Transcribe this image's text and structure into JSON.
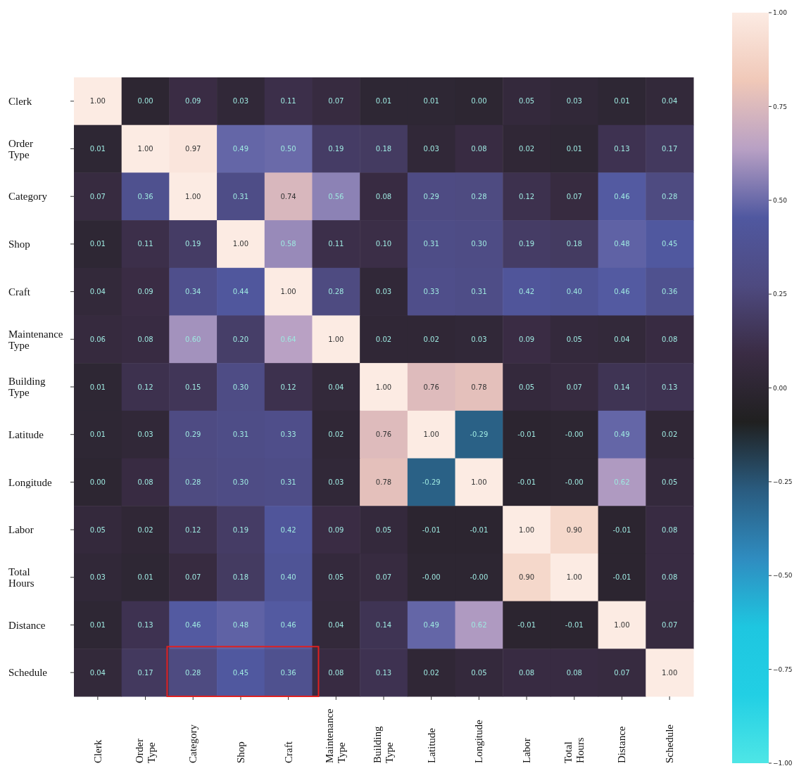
{
  "chart_data": {
    "type": "heatmap",
    "categories": [
      "Clerk",
      "Order Type",
      "Category",
      "Shop",
      "Craft",
      "Maintenance Type",
      "Building Type",
      "Latitude",
      "Longitude",
      "Labor",
      "Total Hours",
      "Distance",
      "Schedule"
    ],
    "y_categories": [
      "Clerk",
      "Order Type",
      "Category",
      "Shop",
      "Craft",
      "Maintenance Type",
      "Building Type",
      "Latitude",
      "Longitude",
      "Labor",
      "Total Hours",
      "Distance",
      "Schedule"
    ],
    "cells": [
      [
        1.0,
        0.0,
        0.09,
        0.03,
        0.11,
        0.07,
        0.01,
        0.01,
        0.0,
        0.05,
        0.03,
        0.01,
        0.04
      ],
      [
        0.01,
        1.0,
        0.97,
        0.49,
        0.5,
        0.19,
        0.18,
        0.03,
        0.08,
        0.02,
        0.01,
        0.13,
        0.17
      ],
      [
        0.07,
        0.36,
        1.0,
        0.31,
        0.74,
        0.56,
        0.08,
        0.29,
        0.28,
        0.12,
        0.07,
        0.46,
        0.28
      ],
      [
        0.01,
        0.11,
        0.19,
        1.0,
        0.58,
        0.11,
        0.1,
        0.31,
        0.3,
        0.19,
        0.18,
        0.48,
        0.45
      ],
      [
        0.04,
        0.09,
        0.34,
        0.44,
        1.0,
        0.28,
        0.03,
        0.33,
        0.31,
        0.42,
        0.4,
        0.46,
        0.36
      ],
      [
        0.06,
        0.08,
        0.6,
        0.2,
        0.64,
        1.0,
        0.02,
        0.02,
        0.03,
        0.09,
        0.05,
        0.04,
        0.08
      ],
      [
        0.01,
        0.12,
        0.15,
        0.3,
        0.12,
        0.04,
        1.0,
        0.76,
        0.78,
        0.05,
        0.07,
        0.14,
        0.13
      ],
      [
        0.01,
        0.03,
        0.29,
        0.31,
        0.33,
        0.02,
        0.76,
        1.0,
        -0.29,
        -0.01,
        0.0,
        0.49,
        0.02
      ],
      [
        0.0,
        0.08,
        0.28,
        0.3,
        0.31,
        0.03,
        0.78,
        -0.29,
        1.0,
        -0.01,
        0.0,
        0.62,
        0.05
      ],
      [
        0.05,
        0.02,
        0.12,
        0.19,
        0.42,
        0.09,
        0.05,
        -0.01,
        -0.01,
        1.0,
        0.9,
        -0.01,
        0.08
      ],
      [
        0.03,
        0.01,
        0.07,
        0.18,
        0.4,
        0.05,
        0.07,
        0.0,
        0.0,
        0.9,
        1.0,
        -0.01,
        0.08
      ],
      [
        0.01,
        0.13,
        0.46,
        0.48,
        0.46,
        0.04,
        0.14,
        0.49,
        0.62,
        -0.01,
        -0.01,
        1.0,
        0.07
      ],
      [
        0.04,
        0.17,
        0.28,
        0.45,
        0.36,
        0.08,
        0.13,
        0.02,
        0.05,
        0.08,
        0.08,
        0.07,
        1.0
      ]
    ],
    "cell_labels": [
      [
        "1.00",
        "0.00",
        "0.09",
        "0.03",
        "0.11",
        "0.07",
        "0.01",
        "0.01",
        "0.00",
        "0.05",
        "0.03",
        "0.01",
        "0.04"
      ],
      [
        "0.01",
        "1.00",
        "0.97",
        "0.49",
        "0.50",
        "0.19",
        "0.18",
        "0.03",
        "0.08",
        "0.02",
        "0.01",
        "0.13",
        "0.17"
      ],
      [
        "0.07",
        "0.36",
        "1.00",
        "0.31",
        "0.74",
        "0.56",
        "0.08",
        "0.29",
        "0.28",
        "0.12",
        "0.07",
        "0.46",
        "0.28"
      ],
      [
        "0.01",
        "0.11",
        "0.19",
        "1.00",
        "0.58",
        "0.11",
        "0.10",
        "0.31",
        "0.30",
        "0.19",
        "0.18",
        "0.48",
        "0.45"
      ],
      [
        "0.04",
        "0.09",
        "0.34",
        "0.44",
        "1.00",
        "0.28",
        "0.03",
        "0.33",
        "0.31",
        "0.42",
        "0.40",
        "0.46",
        "0.36"
      ],
      [
        "0.06",
        "0.08",
        "0.60",
        "0.20",
        "0.64",
        "1.00",
        "0.02",
        "0.02",
        "0.03",
        "0.09",
        "0.05",
        "0.04",
        "0.08"
      ],
      [
        "0.01",
        "0.12",
        "0.15",
        "0.30",
        "0.12",
        "0.04",
        "1.00",
        "0.76",
        "0.78",
        "0.05",
        "0.07",
        "0.14",
        "0.13"
      ],
      [
        "0.01",
        "0.03",
        "0.29",
        "0.31",
        "0.33",
        "0.02",
        "0.76",
        "1.00",
        "-0.29",
        "-0.01",
        "-0.00",
        "0.49",
        "0.02"
      ],
      [
        "0.00",
        "0.08",
        "0.28",
        "0.30",
        "0.31",
        "0.03",
        "0.78",
        "-0.29",
        "1.00",
        "-0.01",
        "-0.00",
        "0.62",
        "0.05"
      ],
      [
        "0.05",
        "0.02",
        "0.12",
        "0.19",
        "0.42",
        "0.09",
        "0.05",
        "-0.01",
        "-0.01",
        "1.00",
        "0.90",
        "-0.01",
        "0.08"
      ],
      [
        "0.03",
        "0.01",
        "0.07",
        "0.18",
        "0.40",
        "0.05",
        "0.07",
        "-0.00",
        "-0.00",
        "0.90",
        "1.00",
        "-0.01",
        "0.08"
      ],
      [
        "0.01",
        "0.13",
        "0.46",
        "0.48",
        "0.46",
        "0.04",
        "0.14",
        "0.49",
        "0.62",
        "-0.01",
        "-0.01",
        "1.00",
        "0.07"
      ],
      [
        "0.04",
        "0.17",
        "0.28",
        "0.45",
        "0.36",
        "0.08",
        "0.13",
        "0.02",
        "0.05",
        "0.08",
        "0.08",
        "0.07",
        "1.00"
      ]
    ],
    "clim": [
      -1,
      1
    ],
    "cticks": [
      {
        "value": -1,
        "label": "−1.00"
      },
      {
        "value": -0.75,
        "label": "−0.75"
      },
      {
        "value": -0.5,
        "label": "−0.50"
      },
      {
        "value": -0.25,
        "label": "−0.25"
      },
      {
        "value": 0,
        "label": "0.00"
      },
      {
        "value": 0.25,
        "label": "0.25"
      },
      {
        "value": 0.5,
        "label": "0.50"
      },
      {
        "value": 0.75,
        "label": "0.75"
      },
      {
        "value": 1,
        "label": "1.00"
      }
    ]
  }
}
